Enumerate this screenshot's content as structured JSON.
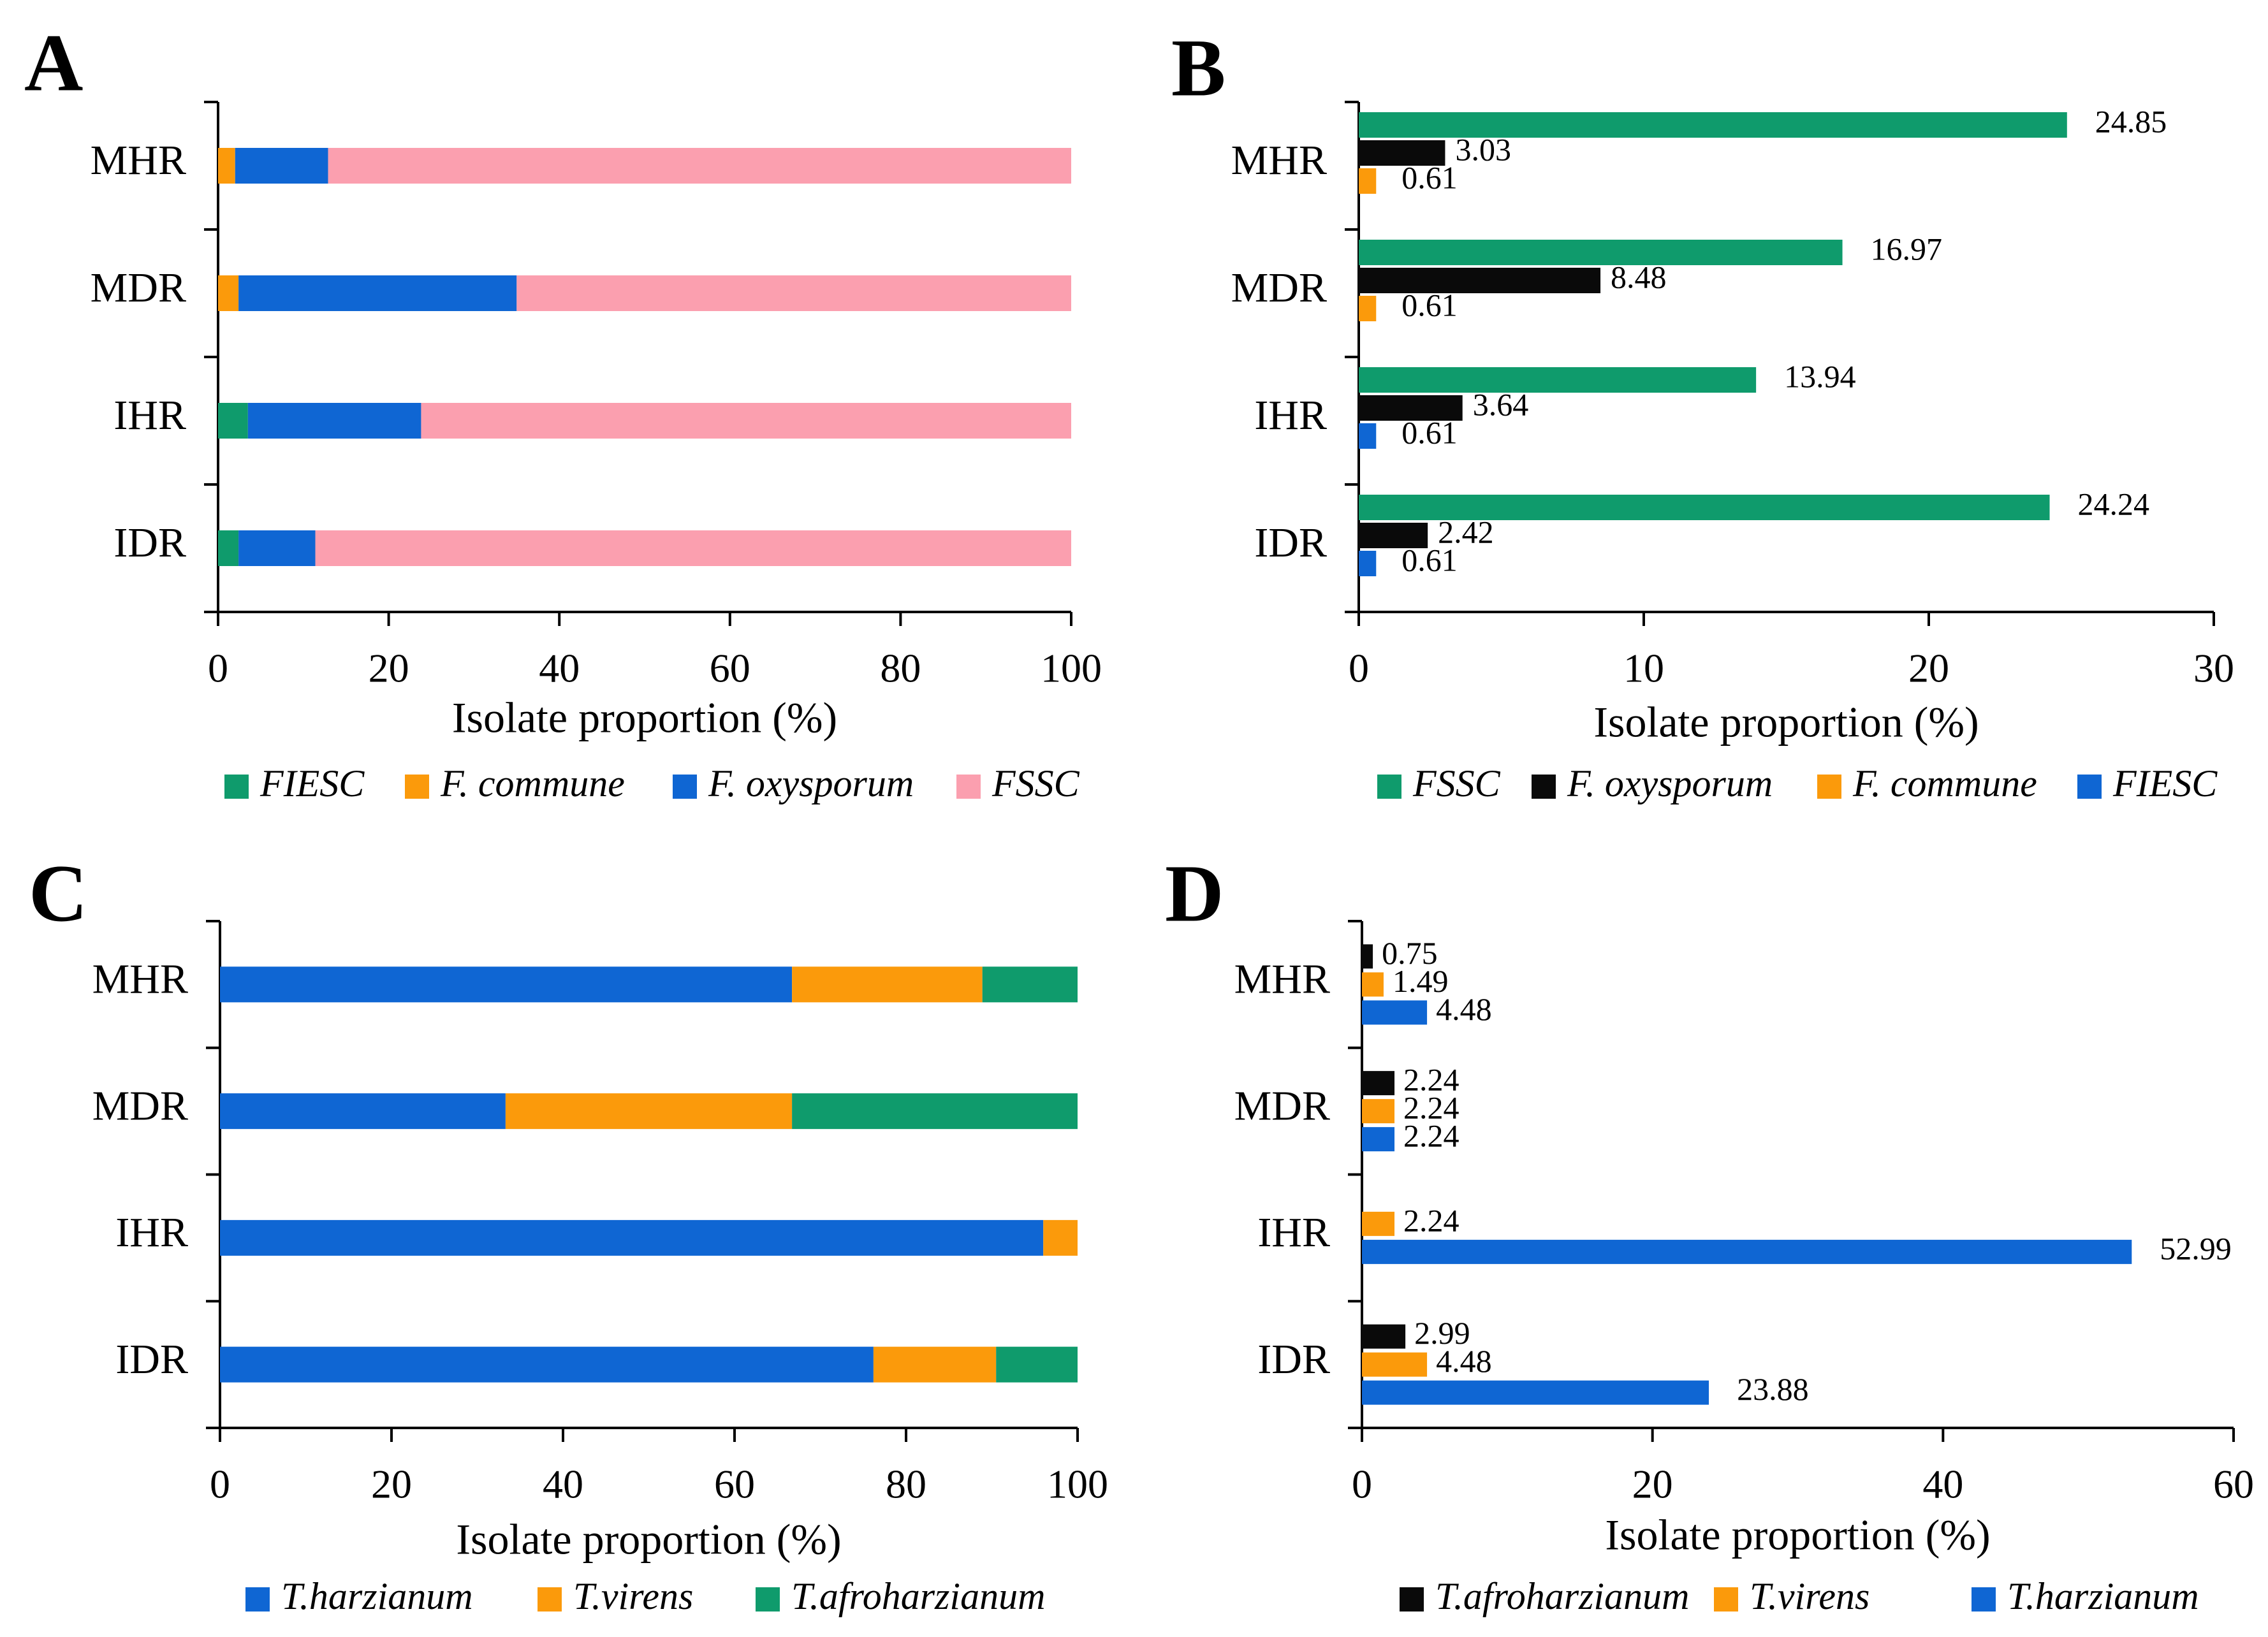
{
  "chart_data": [
    {
      "panel": "A",
      "type": "bar",
      "orientation": "horizontal",
      "stacked": true,
      "categories": [
        "MHR",
        "MDR",
        "IHR",
        "IDR"
      ],
      "xlabel": "Isolate proportion (%)",
      "xlim": [
        0,
        100
      ],
      "xticks": [
        "0",
        "20",
        "40",
        "60",
        "80",
        "100"
      ],
      "series": [
        {
          "name": "FIESC",
          "italic": true,
          "color": "#0f9b6c",
          "values": [
            0,
            0,
            3.5,
            2.4
          ]
        },
        {
          "name": "F. commune",
          "italic": true,
          "color": "#fb9a0b",
          "values": [
            2.0,
            2.4,
            0,
            0
          ]
        },
        {
          "name": "F. oxysporum",
          "italic": true,
          "color": "#0f66d3",
          "values": [
            10.9,
            32.6,
            20.3,
            9.0
          ]
        },
        {
          "name": "FSSC",
          "italic": true,
          "color": "#fb9faf",
          "values": [
            87.1,
            65.0,
            76.2,
            88.6
          ]
        }
      ]
    },
    {
      "panel": "B",
      "type": "bar",
      "orientation": "horizontal",
      "stacked": false,
      "categories": [
        "MHR",
        "MDR",
        "IHR",
        "IDR"
      ],
      "xlabel": "Isolate proportion (%)",
      "xlim": [
        0,
        30
      ],
      "xticks": [
        "0",
        "10",
        "20",
        "30"
      ],
      "series": [
        {
          "name": "FSSC",
          "italic": true,
          "color": "#0f9b6c",
          "values": [
            24.85,
            16.97,
            13.94,
            24.24
          ],
          "labels": [
            "24.85",
            "16.97",
            "13.94",
            "24.24"
          ]
        },
        {
          "name": "F. oxysporum",
          "italic": true,
          "color": "#0a0a0a",
          "values": [
            3.03,
            8.48,
            3.64,
            2.42
          ],
          "labels": [
            "3.03",
            "8.48",
            "3.64",
            "2.42"
          ]
        },
        {
          "name": "F. commune",
          "italic": true,
          "color": "#fb9a0b",
          "values": [
            0.61,
            0.61,
            null,
            null
          ],
          "labels": [
            "0.61",
            "0.61",
            "",
            ""
          ]
        },
        {
          "name": "FIESC",
          "italic": true,
          "color": "#0f66d3",
          "values": [
            null,
            null,
            0.61,
            0.61
          ],
          "labels": [
            "",
            "",
            "0.61",
            "0.61"
          ]
        }
      ]
    },
    {
      "panel": "C",
      "type": "bar",
      "orientation": "horizontal",
      "stacked": true,
      "categories": [
        "MHR",
        "MDR",
        "IHR",
        "IDR"
      ],
      "xlabel": "Isolate proportion (%)",
      "xlim": [
        0,
        100
      ],
      "xticks": [
        "0",
        "20",
        "40",
        "60",
        "80",
        "100"
      ],
      "series": [
        {
          "name": "T.harzianum",
          "italic": true,
          "color": "#0f66d3",
          "values": [
            66.7,
            33.3,
            96.0,
            76.2
          ]
        },
        {
          "name": "T.virens",
          "italic": true,
          "color": "#fb9a0b",
          "values": [
            22.2,
            33.4,
            4.0,
            14.3
          ]
        },
        {
          "name": "T.afroharzianum",
          "italic": true,
          "color": "#0f9b6c",
          "values": [
            11.1,
            33.3,
            0,
            9.5
          ]
        }
      ]
    },
    {
      "panel": "D",
      "type": "bar",
      "orientation": "horizontal",
      "stacked": false,
      "categories": [
        "MHR",
        "MDR",
        "IHR",
        "IDR"
      ],
      "xlabel": "Isolate proportion (%)",
      "xlim": [
        0,
        60
      ],
      "xticks": [
        "0",
        "20",
        "40",
        "60"
      ],
      "series": [
        {
          "name": "T.afroharzianum",
          "italic": true,
          "color": "#0a0a0a",
          "values": [
            0.75,
            2.24,
            null,
            2.99
          ],
          "labels": [
            "0.75",
            "2.24",
            "",
            "2.99"
          ]
        },
        {
          "name": "T.virens",
          "italic": true,
          "color": "#fb9a0b",
          "values": [
            1.49,
            2.24,
            2.24,
            4.48
          ],
          "labels": [
            "1.49",
            "2.24",
            "2.24",
            "4.48"
          ]
        },
        {
          "name": "T.harzianum",
          "italic": true,
          "color": "#0f66d3",
          "values": [
            4.48,
            2.24,
            52.99,
            23.88
          ],
          "labels": [
            "4.48",
            "2.24",
            "52.99",
            "23.88"
          ]
        }
      ]
    }
  ]
}
